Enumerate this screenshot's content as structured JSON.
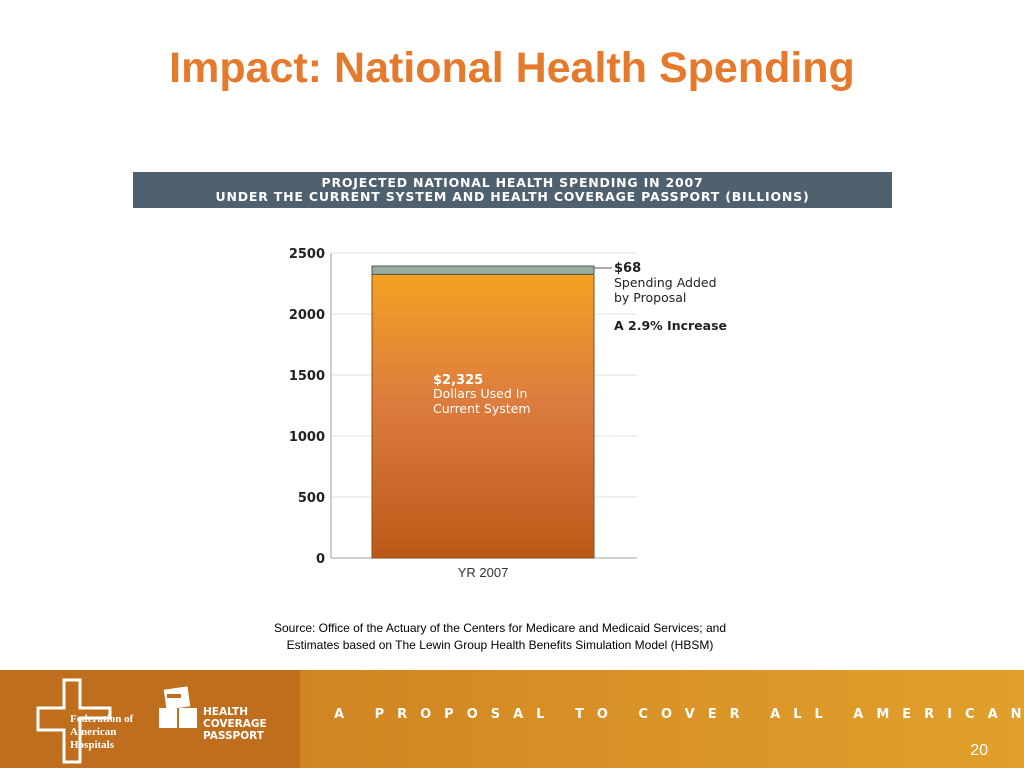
{
  "slide": {
    "title": "Impact: National Health Spending",
    "source_line1": "Source: Office of the Actuary of the Centers for Medicare and Medicaid Services; and",
    "source_line2": "Estimates based on The Lewin Group Health Benefits Simulation Model (HBSM)",
    "page_number": "20"
  },
  "chart_data": {
    "type": "bar",
    "stacked": true,
    "title_line1": "PROJECTED NATIONAL HEALTH SPENDING IN 2007",
    "title_line2": "UNDER THE CURRENT SYSTEM AND HEALTH COVERAGE PASSPORT (BILLIONS)",
    "categories": [
      "YR 2007"
    ],
    "series": [
      {
        "values": [
          2325
        ],
        "label_value": "$2,325",
        "label_line1": "Dollars Used In",
        "label_line2": "Current System",
        "color": "#e8953a"
      },
      {
        "values": [
          68
        ],
        "label_value": "$68",
        "label_line1": "Spending Added",
        "label_line2": "by Proposal",
        "color": "#9aac9c"
      }
    ],
    "annotation": "A 2.9% Increase",
    "yticks": [
      "0",
      "500",
      "1000",
      "1500",
      "2000",
      "2500"
    ],
    "ylim": [
      0,
      2500
    ],
    "grid": true
  },
  "footer": {
    "org_line1": "Federation of",
    "org_line2": "American",
    "org_line3": "Hospitals",
    "product_line1": "HEALTH",
    "product_line2": "COVERAGE",
    "product_line3": "PASSPORT",
    "tagline": "A PROPOSAL TO COVER ALL AMERICANS"
  }
}
